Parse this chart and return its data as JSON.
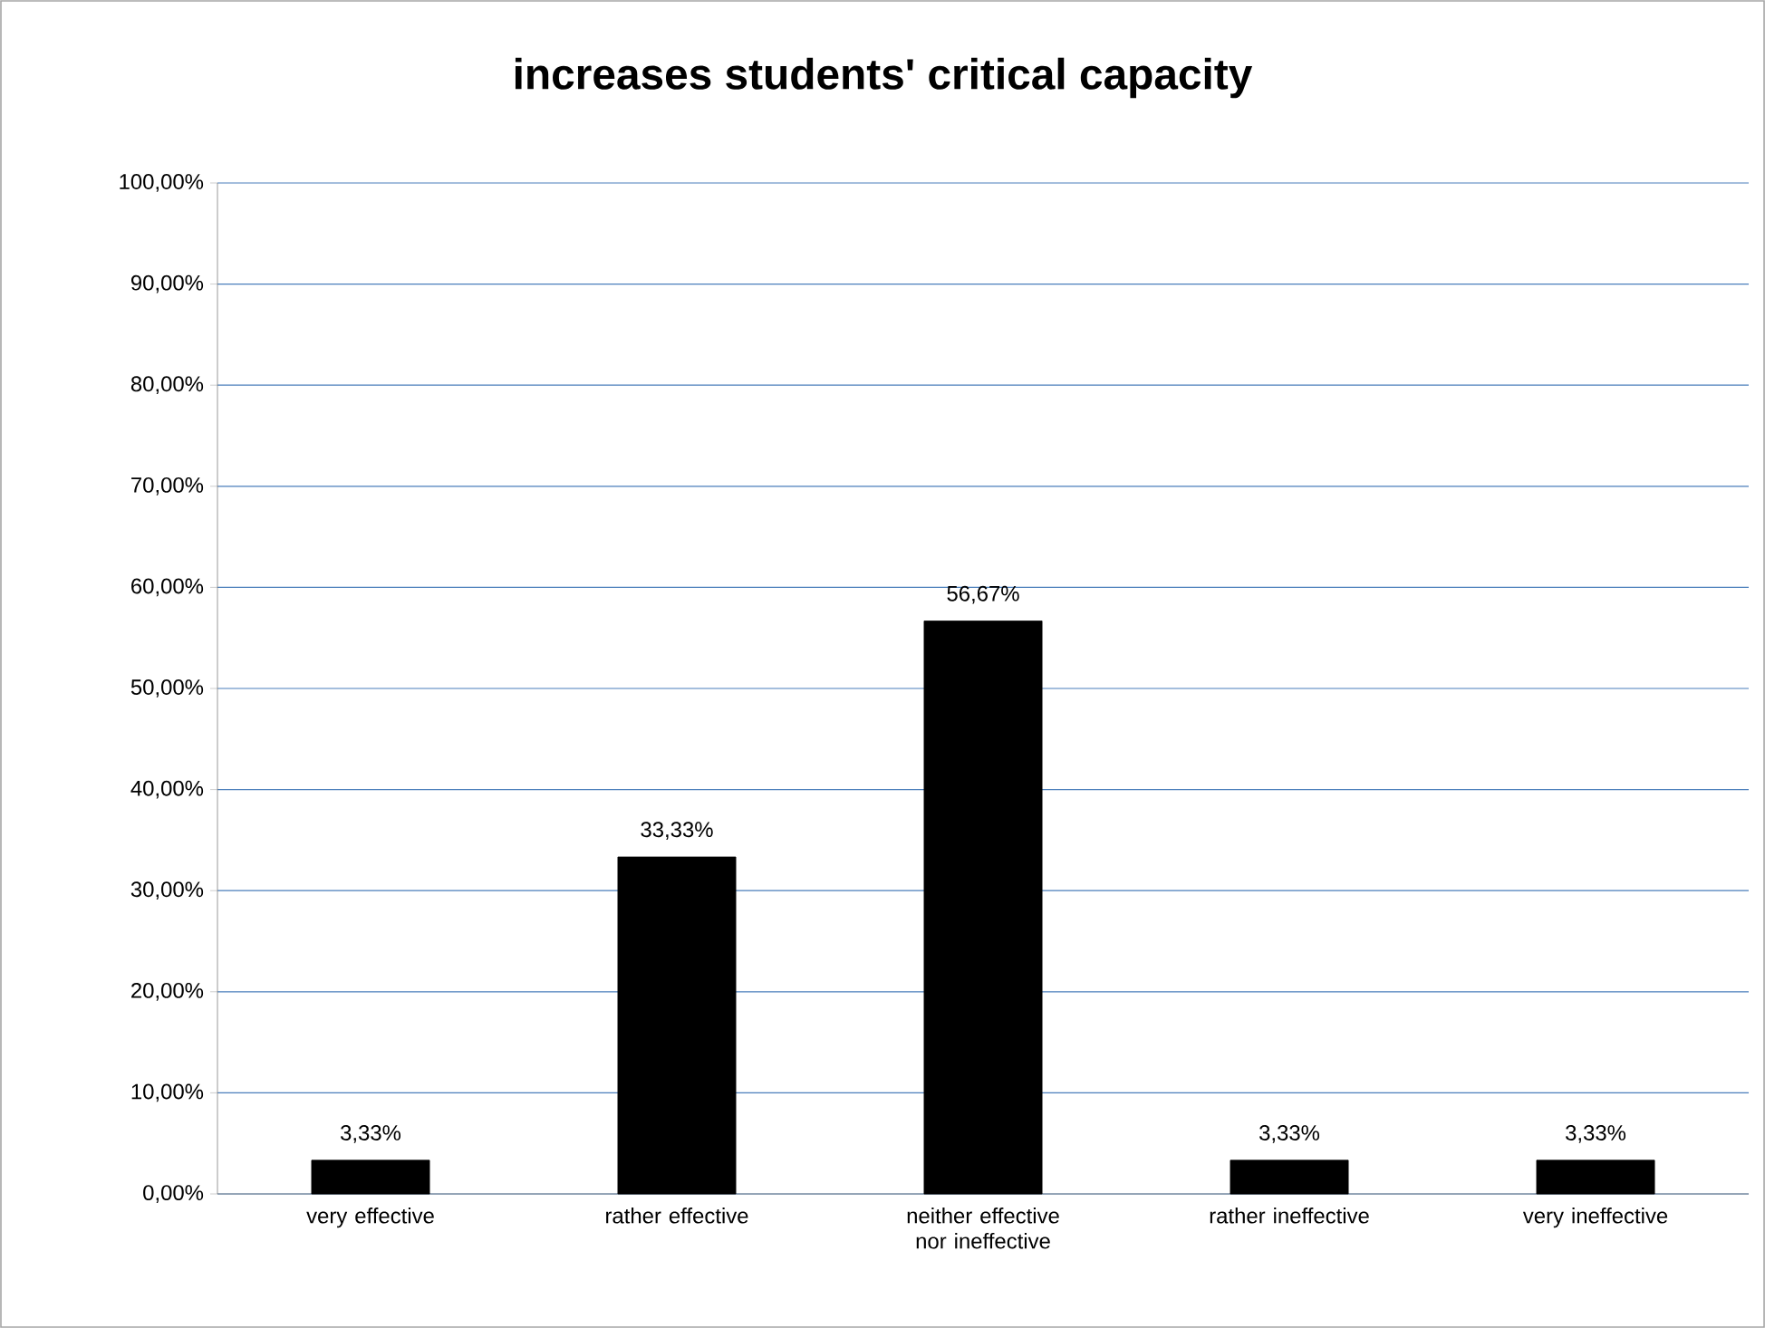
{
  "chart_data": {
    "type": "bar",
    "title": "increases students' critical capacity",
    "categories": [
      "very effective",
      "rather effective",
      "neither effective nor ineffective",
      "rather ineffective",
      "very ineffective"
    ],
    "values": [
      3.33,
      33.33,
      56.67,
      3.33,
      3.33
    ],
    "value_labels": [
      "3,33%",
      "33,33%",
      "56,67%",
      "3,33%",
      "3,33%"
    ],
    "color": "#000000",
    "ylim": [
      0,
      100
    ],
    "yticks": [
      {
        "value": 0,
        "label": "0,00%"
      },
      {
        "value": 10,
        "label": "10,00%"
      },
      {
        "value": 20,
        "label": "20,00%"
      },
      {
        "value": 30,
        "label": "30,00%"
      },
      {
        "value": 40,
        "label": "40,00%"
      },
      {
        "value": 50,
        "label": "50,00%"
      },
      {
        "value": 60,
        "label": "60,00%"
      },
      {
        "value": 70,
        "label": "70,00%"
      },
      {
        "value": 80,
        "label": "80,00%"
      },
      {
        "value": 90,
        "label": "90,00%"
      },
      {
        "value": 100,
        "label": "100,00%"
      }
    ],
    "grid": "y"
  }
}
